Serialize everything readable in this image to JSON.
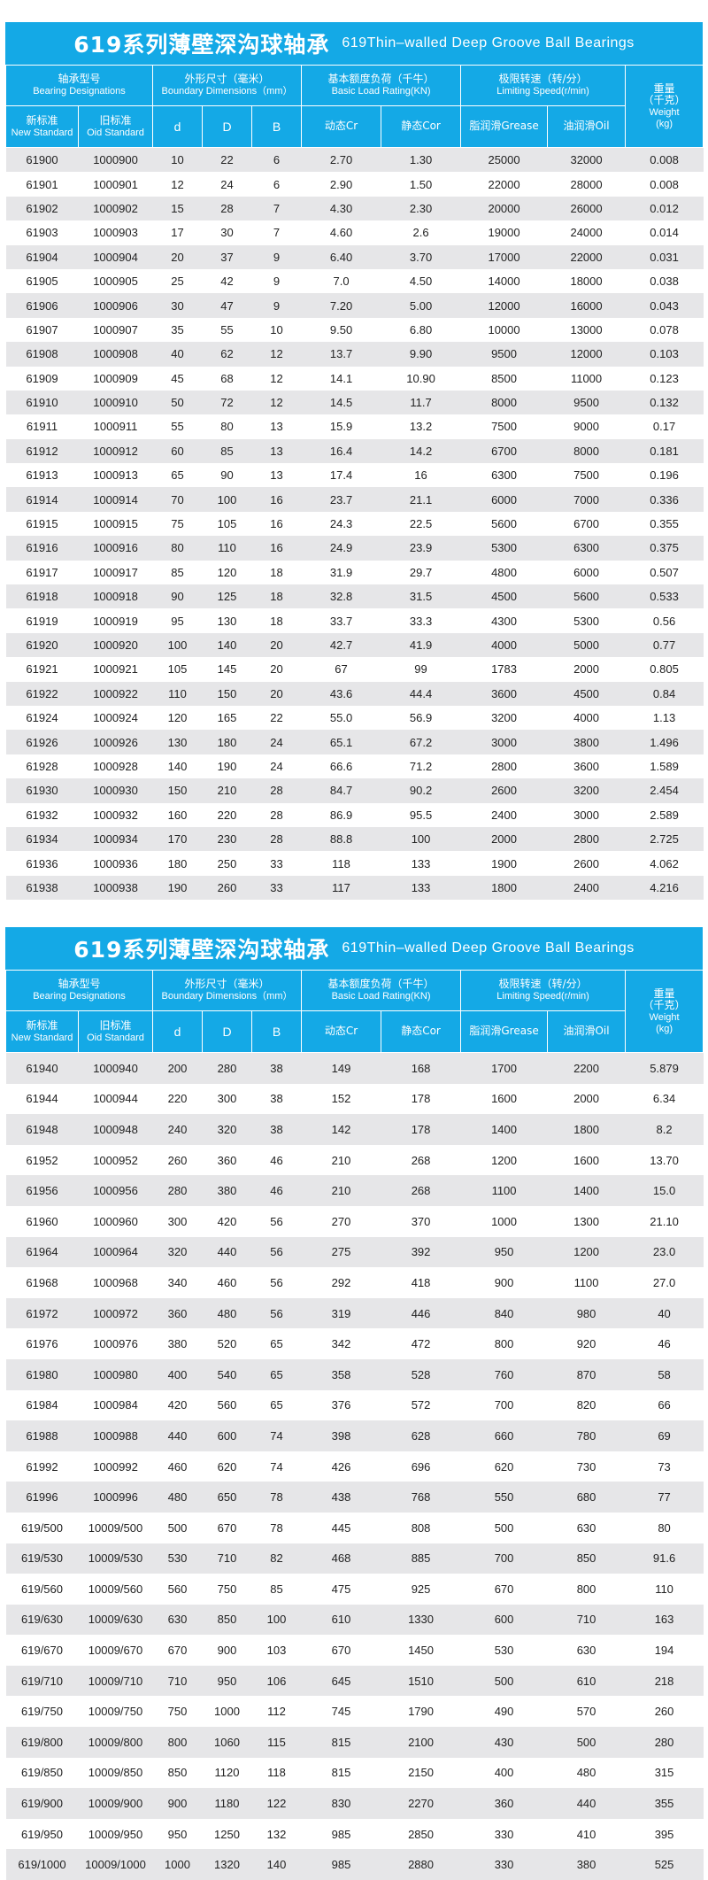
{
  "tables": [
    {
      "title_cn": "619系列薄壁深沟球轴承",
      "title_en": "619Thin–walled Deep Groove Ball Bearings",
      "headers": {
        "designation_cn": "轴承型号",
        "designation_en": "Bearing Designations",
        "dimensions_cn": "外形尺寸（毫米）",
        "dimensions_en": "Boundary Dimensions（mm）",
        "load_cn": "基本额度负荷（千牛）",
        "load_en": "Basic Load Rating(KN)",
        "speed_cn": "极限转速（转/分）",
        "speed_en": "Limiting Speed(r/min)",
        "weight_cn1": "重量",
        "weight_cn2": "（千克）",
        "weight_en1": "Weight",
        "weight_en2": "(kg)",
        "new_cn": "新标准",
        "new_en": "New Standard",
        "old_cn": "旧标准",
        "old_en": "Oid Standard",
        "d": "d",
        "D": "D",
        "B": "B",
        "cr": "动态Cr",
        "cor": "静态Cor",
        "grease": "脂润滑Grease",
        "oil": "油润滑Oil"
      },
      "rows": [
        [
          "61900",
          "1000900",
          "10",
          "22",
          "6",
          "2.70",
          "1.30",
          "25000",
          "32000",
          "0.008"
        ],
        [
          "61901",
          "1000901",
          "12",
          "24",
          "6",
          "2.90",
          "1.50",
          "22000",
          "28000",
          "0.008"
        ],
        [
          "61902",
          "1000902",
          "15",
          "28",
          "7",
          "4.30",
          "2.30",
          "20000",
          "26000",
          "0.012"
        ],
        [
          "61903",
          "1000903",
          "17",
          "30",
          "7",
          "4.60",
          "2.6",
          "19000",
          "24000",
          "0.014"
        ],
        [
          "61904",
          "1000904",
          "20",
          "37",
          "9",
          "6.40",
          "3.70",
          "17000",
          "22000",
          "0.031"
        ],
        [
          "61905",
          "1000905",
          "25",
          "42",
          "9",
          "7.0",
          "4.50",
          "14000",
          "18000",
          "0.038"
        ],
        [
          "61906",
          "1000906",
          "30",
          "47",
          "9",
          "7.20",
          "5.00",
          "12000",
          "16000",
          "0.043"
        ],
        [
          "61907",
          "1000907",
          "35",
          "55",
          "10",
          "9.50",
          "6.80",
          "10000",
          "13000",
          "0.078"
        ],
        [
          "61908",
          "1000908",
          "40",
          "62",
          "12",
          "13.7",
          "9.90",
          "9500",
          "12000",
          "0.103"
        ],
        [
          "61909",
          "1000909",
          "45",
          "68",
          "12",
          "14.1",
          "10.90",
          "8500",
          "11000",
          "0.123"
        ],
        [
          "61910",
          "1000910",
          "50",
          "72",
          "12",
          "14.5",
          "11.7",
          "8000",
          "9500",
          "0.132"
        ],
        [
          "61911",
          "1000911",
          "55",
          "80",
          "13",
          "15.9",
          "13.2",
          "7500",
          "9000",
          "0.17"
        ],
        [
          "61912",
          "1000912",
          "60",
          "85",
          "13",
          "16.4",
          "14.2",
          "6700",
          "8000",
          "0.181"
        ],
        [
          "61913",
          "1000913",
          "65",
          "90",
          "13",
          "17.4",
          "16",
          "6300",
          "7500",
          "0.196"
        ],
        [
          "61914",
          "1000914",
          "70",
          "100",
          "16",
          "23.7",
          "21.1",
          "6000",
          "7000",
          "0.336"
        ],
        [
          "61915",
          "1000915",
          "75",
          "105",
          "16",
          "24.3",
          "22.5",
          "5600",
          "6700",
          "0.355"
        ],
        [
          "61916",
          "1000916",
          "80",
          "110",
          "16",
          "24.9",
          "23.9",
          "5300",
          "6300",
          "0.375"
        ],
        [
          "61917",
          "1000917",
          "85",
          "120",
          "18",
          "31.9",
          "29.7",
          "4800",
          "6000",
          "0.507"
        ],
        [
          "61918",
          "1000918",
          "90",
          "125",
          "18",
          "32.8",
          "31.5",
          "4500",
          "5600",
          "0.533"
        ],
        [
          "61919",
          "1000919",
          "95",
          "130",
          "18",
          "33.7",
          "33.3",
          "4300",
          "5300",
          "0.56"
        ],
        [
          "61920",
          "1000920",
          "100",
          "140",
          "20",
          "42.7",
          "41.9",
          "4000",
          "5000",
          "0.77"
        ],
        [
          "61921",
          "1000921",
          "105",
          "145",
          "20",
          "67",
          "99",
          "1783",
          "2000",
          "0.805"
        ],
        [
          "61922",
          "1000922",
          "110",
          "150",
          "20",
          "43.6",
          "44.4",
          "3600",
          "4500",
          "0.84"
        ],
        [
          "61924",
          "1000924",
          "120",
          "165",
          "22",
          "55.0",
          "56.9",
          "3200",
          "4000",
          "1.13"
        ],
        [
          "61926",
          "1000926",
          "130",
          "180",
          "24",
          "65.1",
          "67.2",
          "3000",
          "3800",
          "1.496"
        ],
        [
          "61928",
          "1000928",
          "140",
          "190",
          "24",
          "66.6",
          "71.2",
          "2800",
          "3600",
          "1.589"
        ],
        [
          "61930",
          "1000930",
          "150",
          "210",
          "28",
          "84.7",
          "90.2",
          "2600",
          "3200",
          "2.454"
        ],
        [
          "61932",
          "1000932",
          "160",
          "220",
          "28",
          "86.9",
          "95.5",
          "2400",
          "3000",
          "2.589"
        ],
        [
          "61934",
          "1000934",
          "170",
          "230",
          "28",
          "88.8",
          "100",
          "2000",
          "2800",
          "2.725"
        ],
        [
          "61936",
          "1000936",
          "180",
          "250",
          "33",
          "118",
          "133",
          "1900",
          "2600",
          "4.062"
        ],
        [
          "61938",
          "1000938",
          "190",
          "260",
          "33",
          "117",
          "133",
          "1800",
          "2400",
          "4.216"
        ]
      ]
    },
    {
      "title_cn": "619系列薄壁深沟球轴承",
      "title_en": "619Thin–walled Deep Groove Ball Bearings",
      "headers": {
        "designation_cn": "轴承型号",
        "designation_en": "Bearing Designations",
        "dimensions_cn": "外形尺寸（毫米）",
        "dimensions_en": "Boundary Dimensions（mm）",
        "load_cn": "基本额度负荷（千牛）",
        "load_en": "Basic Load Rating(KN)",
        "speed_cn": "极限转速（转/分）",
        "speed_en": "Limiting Speed(r/min)",
        "weight_cn1": "重量",
        "weight_cn2": "（千克）",
        "weight_en1": "Weight",
        "weight_en2": "(kg)",
        "new_cn": "新标准",
        "new_en": "New Standard",
        "old_cn": "旧标准",
        "old_en": "Oid Standard",
        "d": "d",
        "D": "D",
        "B": "B",
        "cr": "动态Cr",
        "cor": "静态Cor",
        "grease": "脂润滑Grease",
        "oil": "油润滑Oil"
      },
      "rows": [
        [
          "61940",
          "1000940",
          "200",
          "280",
          "38",
          "149",
          "168",
          "1700",
          "2200",
          "5.879"
        ],
        [
          "61944",
          "1000944",
          "220",
          "300",
          "38",
          "152",
          "178",
          "1600",
          "2000",
          "6.34"
        ],
        [
          "61948",
          "1000948",
          "240",
          "320",
          "38",
          "142",
          "178",
          "1400",
          "1800",
          "8.2"
        ],
        [
          "61952",
          "1000952",
          "260",
          "360",
          "46",
          "210",
          "268",
          "1200",
          "1600",
          "13.70"
        ],
        [
          "61956",
          "1000956",
          "280",
          "380",
          "46",
          "210",
          "268",
          "1100",
          "1400",
          "15.0"
        ],
        [
          "61960",
          "1000960",
          "300",
          "420",
          "56",
          "270",
          "370",
          "1000",
          "1300",
          "21.10"
        ],
        [
          "61964",
          "1000964",
          "320",
          "440",
          "56",
          "275",
          "392",
          "950",
          "1200",
          "23.0"
        ],
        [
          "61968",
          "1000968",
          "340",
          "460",
          "56",
          "292",
          "418",
          "900",
          "1100",
          "27.0"
        ],
        [
          "61972",
          "1000972",
          "360",
          "480",
          "56",
          "319",
          "446",
          "840",
          "980",
          "40"
        ],
        [
          "61976",
          "1000976",
          "380",
          "520",
          "65",
          "342",
          "472",
          "800",
          "920",
          "46"
        ],
        [
          "61980",
          "1000980",
          "400",
          "540",
          "65",
          "358",
          "528",
          "760",
          "870",
          "58"
        ],
        [
          "61984",
          "1000984",
          "420",
          "560",
          "65",
          "376",
          "572",
          "700",
          "820",
          "66"
        ],
        [
          "61988",
          "1000988",
          "440",
          "600",
          "74",
          "398",
          "628",
          "660",
          "780",
          "69"
        ],
        [
          "61992",
          "1000992",
          "460",
          "620",
          "74",
          "426",
          "696",
          "620",
          "730",
          "73"
        ],
        [
          "61996",
          "1000996",
          "480",
          "650",
          "78",
          "438",
          "768",
          "550",
          "680",
          "77"
        ],
        [
          "619/500",
          "10009/500",
          "500",
          "670",
          "78",
          "445",
          "808",
          "500",
          "630",
          "80"
        ],
        [
          "619/530",
          "10009/530",
          "530",
          "710",
          "82",
          "468",
          "885",
          "700",
          "850",
          "91.6"
        ],
        [
          "619/560",
          "10009/560",
          "560",
          "750",
          "85",
          "475",
          "925",
          "670",
          "800",
          "110"
        ],
        [
          "619/630",
          "10009/630",
          "630",
          "850",
          "100",
          "610",
          "1330",
          "600",
          "710",
          "163"
        ],
        [
          "619/670",
          "10009/670",
          "670",
          "900",
          "103",
          "670",
          "1450",
          "530",
          "630",
          "194"
        ],
        [
          "619/710",
          "10009/710",
          "710",
          "950",
          "106",
          "645",
          "1510",
          "500",
          "610",
          "218"
        ],
        [
          "619/750",
          "10009/750",
          "750",
          "1000",
          "112",
          "745",
          "1790",
          "490",
          "570",
          "260"
        ],
        [
          "619/800",
          "10009/800",
          "800",
          "1060",
          "115",
          "815",
          "2100",
          "430",
          "500",
          "280"
        ],
        [
          "619/850",
          "10009/850",
          "850",
          "1120",
          "118",
          "815",
          "2150",
          "400",
          "480",
          "315"
        ],
        [
          "619/900",
          "10009/900",
          "900",
          "1180",
          "122",
          "830",
          "2270",
          "360",
          "440",
          "355"
        ],
        [
          "619/950",
          "10009/950",
          "950",
          "1250",
          "132",
          "985",
          "2850",
          "330",
          "410",
          "395"
        ],
        [
          "619/1000",
          "10009/1000",
          "1000",
          "1320",
          "140",
          "985",
          "2880",
          "330",
          "380",
          "525"
        ]
      ]
    }
  ]
}
